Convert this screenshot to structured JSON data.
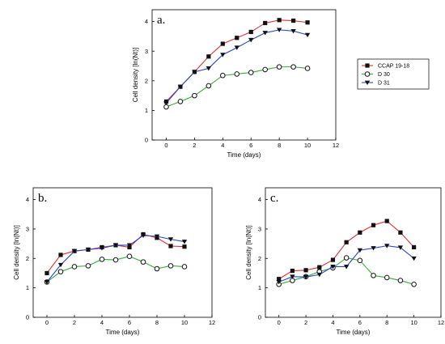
{
  "chart_data": [
    {
      "type": "line",
      "title": "a.",
      "xlabel": "Time (days)",
      "ylabel": "Cell density [ln(Nt)]",
      "xlim": [
        -1,
        12
      ],
      "ylim": [
        0,
        4.4
      ],
      "xticks": [
        0,
        2,
        4,
        6,
        8,
        10,
        12
      ],
      "yticks": [
        0,
        1,
        2,
        3,
        4
      ],
      "x": [
        0,
        1,
        2,
        3,
        4,
        5,
        6,
        7,
        8,
        9,
        10
      ],
      "series": [
        {
          "name": "CCAP 19-18",
          "color": "#e23030",
          "marker": "square",
          "values": [
            1.3,
            1.8,
            2.3,
            2.82,
            3.25,
            3.45,
            3.65,
            3.95,
            4.05,
            4.03,
            3.97
          ]
        },
        {
          "name": "D 30",
          "color": "#3aaa3a",
          "marker": "circle-open",
          "values": [
            1.12,
            1.3,
            1.5,
            1.83,
            2.18,
            2.23,
            2.28,
            2.38,
            2.47,
            2.47,
            2.42
          ]
        },
        {
          "name": "D 31",
          "color": "#2848c8",
          "marker": "triangle-down",
          "values": [
            1.25,
            1.8,
            2.3,
            2.42,
            2.88,
            3.12,
            3.38,
            3.62,
            3.72,
            3.68,
            3.55
          ]
        }
      ],
      "legend": {
        "placement": "right",
        "entries": [
          "CCAP 19-18",
          "D 30",
          "D 31"
        ]
      }
    },
    {
      "type": "line",
      "title": "b.",
      "xlabel": "Time (days)",
      "ylabel": "Cell density [ln(Nt)]",
      "xlim": [
        -1,
        12
      ],
      "ylim": [
        0,
        4.4
      ],
      "xticks": [
        0,
        2,
        4,
        6,
        8,
        10,
        12
      ],
      "yticks": [
        0,
        1,
        2,
        3,
        4
      ],
      "x": [
        0,
        1,
        2,
        3,
        4,
        5,
        6,
        7,
        8,
        9,
        10
      ],
      "series": [
        {
          "name": "CCAP 19-18",
          "color": "#e23030",
          "marker": "square",
          "values": [
            1.5,
            2.12,
            2.25,
            2.3,
            2.38,
            2.45,
            2.38,
            2.82,
            2.7,
            2.42,
            2.4
          ]
        },
        {
          "name": "D 30",
          "color": "#3aaa3a",
          "marker": "circle-open",
          "values": [
            1.2,
            1.55,
            1.72,
            1.75,
            1.97,
            1.95,
            2.07,
            1.88,
            1.65,
            1.75,
            1.72
          ]
        },
        {
          "name": "D 31",
          "color": "#2848c8",
          "marker": "triangle-down",
          "values": [
            1.2,
            1.78,
            2.25,
            2.3,
            2.35,
            2.45,
            2.45,
            2.78,
            2.75,
            2.65,
            2.57
          ]
        }
      ]
    },
    {
      "type": "line",
      "title": "c.",
      "xlabel": "Time (days)",
      "ylabel": "Cell density [ln(Nt)]",
      "xlim": [
        -1,
        12
      ],
      "ylim": [
        0,
        4.4
      ],
      "xticks": [
        0,
        2,
        4,
        6,
        8,
        10,
        12
      ],
      "yticks": [
        0,
        1,
        2,
        3,
        4
      ],
      "x": [
        0,
        1,
        2,
        3,
        4,
        5,
        6,
        7,
        8,
        9,
        10
      ],
      "series": [
        {
          "name": "CCAP 19-18",
          "color": "#e23030",
          "marker": "square",
          "values": [
            1.3,
            1.58,
            1.6,
            1.7,
            1.95,
            2.55,
            2.88,
            3.13,
            3.27,
            2.88,
            2.38
          ]
        },
        {
          "name": "D 30",
          "color": "#3aaa3a",
          "marker": "circle-open",
          "values": [
            1.12,
            1.25,
            1.38,
            1.55,
            1.68,
            2.02,
            1.93,
            1.42,
            1.35,
            1.25,
            1.12
          ]
        },
        {
          "name": "D 31",
          "color": "#2848c8",
          "marker": "triangle-down",
          "values": [
            1.2,
            1.38,
            1.37,
            1.45,
            1.72,
            1.72,
            2.28,
            2.35,
            2.43,
            2.37,
            2.0
          ]
        }
      ]
    }
  ]
}
